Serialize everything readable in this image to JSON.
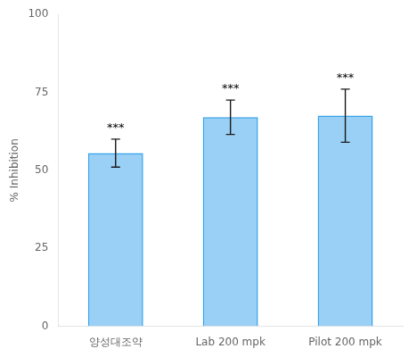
{
  "chart_data": {
    "type": "bar",
    "categories": [
      "양성대조약",
      "Lab 200 mpk",
      "Pilot 200 mpk"
    ],
    "values": [
      55.5,
      67.0,
      67.5
    ],
    "errors": [
      4.5,
      5.5,
      8.5
    ],
    "annotations": [
      "***",
      "***",
      "***"
    ],
    "ylabel": "% Inhibition",
    "ylim": [
      0,
      100
    ],
    "yticks": [
      0,
      25,
      50,
      75,
      100
    ],
    "grid": false
  }
}
